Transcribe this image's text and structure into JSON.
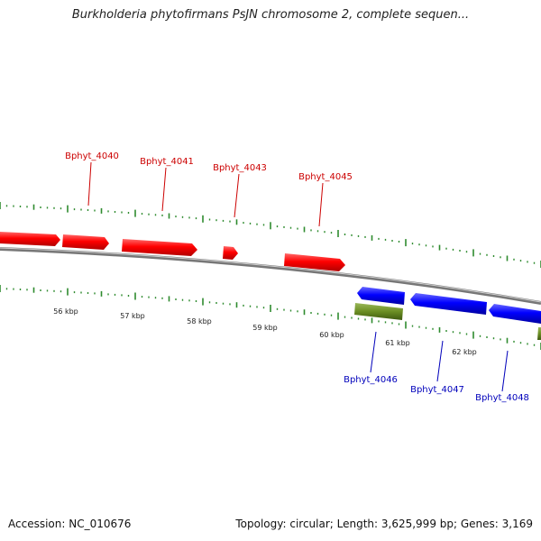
{
  "title": "Burkholderia phytofirmans PsJN chromosome 2, complete sequen...",
  "footer": {
    "accession": "Accession: NC_010676",
    "summary": "Topology: circular; Length: 3,625,999 bp; Genes: 3,169"
  },
  "colors": {
    "forward_gene": "#ff0000",
    "reverse_gene": "#0000ff",
    "rna_gene": "#6b8e23",
    "backbone": "#888888",
    "ticks": "#2e8b2e",
    "forward_label": "#cc0000",
    "reverse_label": "#0000bb"
  },
  "scale_labels": [
    "56 kbp",
    "57 kbp",
    "58 kbp",
    "59 kbp",
    "60 kbp",
    "61 kbp",
    "62 kbp"
  ],
  "gene_labels": {
    "forward": [
      "Bphyt_4040",
      "Bphyt_4041",
      "Bphyt_4043",
      "Bphyt_4045"
    ],
    "reverse": [
      "Bphyt_4046",
      "Bphyt_4047",
      "Bphyt_4048"
    ]
  }
}
